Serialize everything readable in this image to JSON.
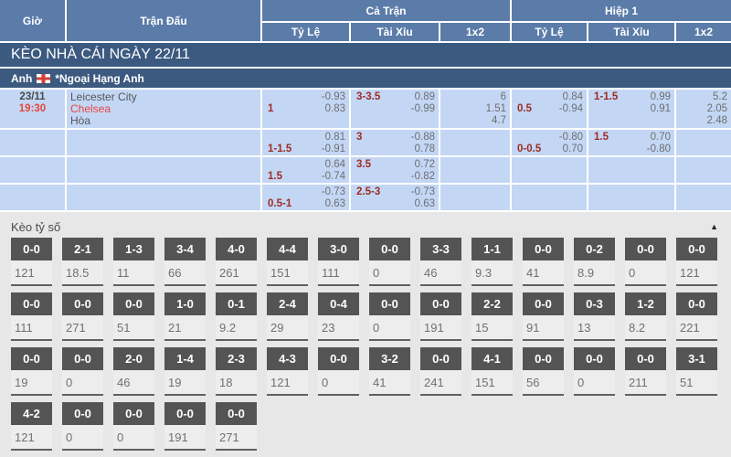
{
  "colors": {
    "header_blue": "#5b7ca9",
    "title_bar_blue": "#3c5a80",
    "row_blue": "#c3d7f5",
    "accent_red": "#e8463c",
    "handicap_red": "#9e2b22",
    "odds_gray": "#6e6e6e",
    "score_box_header_gray": "#545454",
    "section_bg": "#e7e7e7"
  },
  "odds_table": {
    "headers": {
      "time": "Giờ",
      "match": "Trận Đấu",
      "full_match": "Cả Trận",
      "first_half": "Hiệp 1",
      "odds": "Tỷ Lệ",
      "over_under": "Tài Xỉu",
      "one_x_two": "1x2"
    },
    "section_title": "KÈO NHÀ CÁI NGÀY 22/11",
    "league": {
      "country": "Anh",
      "flag_icon": "england-flag",
      "name": "*Ngoại Hạng Anh"
    },
    "rows": [
      {
        "date": "23/11",
        "time": "19:30",
        "teams": [
          "Leicester City",
          "Chelsea",
          "Hòa"
        ],
        "cells": [
          {
            "type": "hdp",
            "lines": [
              [
                "",
                "-0.93"
              ],
              [
                "1",
                "0.83"
              ]
            ]
          },
          {
            "type": "hdp",
            "lines": [
              [
                "3-3.5",
                "0.89"
              ],
              [
                "",
                "-0.99"
              ]
            ]
          },
          {
            "type": "1x2",
            "values": [
              "6",
              "1.51",
              "4.7"
            ]
          },
          {
            "type": "hdp",
            "lines": [
              [
                "",
                "0.84"
              ],
              [
                "0.5",
                "-0.94"
              ]
            ]
          },
          {
            "type": "hdp",
            "lines": [
              [
                "1-1.5",
                "0.99"
              ],
              [
                "",
                "0.91"
              ]
            ]
          },
          {
            "type": "1x2",
            "values": [
              "5.2",
              "2.05",
              "2.48"
            ]
          }
        ]
      },
      {
        "date": "",
        "time": "",
        "teams": [],
        "cells": [
          {
            "type": "hdp",
            "lines": [
              [
                "",
                "0.81"
              ],
              [
                "1-1.5",
                "-0.91"
              ]
            ]
          },
          {
            "type": "hdp",
            "lines": [
              [
                "3",
                "-0.88"
              ],
              [
                "",
                "0.78"
              ]
            ]
          },
          {
            "type": "1x2",
            "values": []
          },
          {
            "type": "hdp",
            "lines": [
              [
                "",
                "-0.80"
              ],
              [
                "0-0.5",
                "0.70"
              ]
            ]
          },
          {
            "type": "hdp",
            "lines": [
              [
                "1.5",
                "0.70"
              ],
              [
                "",
                "-0.80"
              ]
            ]
          },
          {
            "type": "1x2",
            "values": []
          }
        ]
      },
      {
        "date": "",
        "time": "",
        "teams": [],
        "cells": [
          {
            "type": "hdp",
            "lines": [
              [
                "",
                "0.64"
              ],
              [
                "1.5",
                "-0.74"
              ]
            ]
          },
          {
            "type": "hdp",
            "lines": [
              [
                "3.5",
                "0.72"
              ],
              [
                "",
                "-0.82"
              ]
            ]
          },
          {
            "type": "1x2",
            "values": []
          },
          {
            "type": "hdp",
            "lines": [
              [
                "",
                ""
              ],
              [
                "",
                ""
              ]
            ]
          },
          {
            "type": "hdp",
            "lines": [
              [
                "",
                ""
              ],
              [
                "",
                ""
              ]
            ]
          },
          {
            "type": "1x2",
            "values": []
          }
        ]
      },
      {
        "date": "",
        "time": "",
        "teams": [],
        "cells": [
          {
            "type": "hdp",
            "lines": [
              [
                "",
                "-0.73"
              ],
              [
                "0.5-1",
                "0.63"
              ]
            ]
          },
          {
            "type": "hdp",
            "lines": [
              [
                "2.5-3",
                "-0.73"
              ],
              [
                "",
                "0.63"
              ]
            ]
          },
          {
            "type": "1x2",
            "values": []
          },
          {
            "type": "hdp",
            "lines": [
              [
                "",
                ""
              ],
              [
                "",
                ""
              ]
            ]
          },
          {
            "type": "hdp",
            "lines": [
              [
                "",
                ""
              ],
              [
                "",
                ""
              ]
            ]
          },
          {
            "type": "1x2",
            "values": []
          }
        ]
      }
    ]
  },
  "score_odds": {
    "title": "Kèo tỷ số",
    "collapse_icon": "▲",
    "rows": [
      [
        {
          "score": "0-0",
          "odds": "121"
        },
        {
          "score": "2-1",
          "odds": "18.5"
        },
        {
          "score": "1-3",
          "odds": "11"
        },
        {
          "score": "3-4",
          "odds": "66"
        },
        {
          "score": "4-0",
          "odds": "261"
        },
        {
          "score": "4-4",
          "odds": "151"
        },
        {
          "score": "3-0",
          "odds": "111"
        },
        {
          "score": "0-0",
          "odds": "0"
        },
        {
          "score": "3-3",
          "odds": "46"
        },
        {
          "score": "1-1",
          "odds": "9.3"
        },
        {
          "score": "0-0",
          "odds": "41"
        },
        {
          "score": "0-2",
          "odds": "8.9"
        },
        {
          "score": "0-0",
          "odds": "0"
        },
        {
          "score": "0-0",
          "odds": "121"
        }
      ],
      [
        {
          "score": "0-0",
          "odds": "111"
        },
        {
          "score": "0-0",
          "odds": "271"
        },
        {
          "score": "0-0",
          "odds": "51"
        },
        {
          "score": "1-0",
          "odds": "21"
        },
        {
          "score": "0-1",
          "odds": "9.2"
        },
        {
          "score": "2-4",
          "odds": "29"
        },
        {
          "score": "0-4",
          "odds": "23"
        },
        {
          "score": "0-0",
          "odds": "0"
        },
        {
          "score": "0-0",
          "odds": "191"
        },
        {
          "score": "2-2",
          "odds": "15"
        },
        {
          "score": "0-0",
          "odds": "91"
        },
        {
          "score": "0-3",
          "odds": "13"
        },
        {
          "score": "1-2",
          "odds": "8.2"
        },
        {
          "score": "0-0",
          "odds": "221"
        }
      ],
      [
        {
          "score": "0-0",
          "odds": "19"
        },
        {
          "score": "0-0",
          "odds": "0"
        },
        {
          "score": "2-0",
          "odds": "46"
        },
        {
          "score": "1-4",
          "odds": "19"
        },
        {
          "score": "2-3",
          "odds": "18"
        },
        {
          "score": "4-3",
          "odds": "121"
        },
        {
          "score": "0-0",
          "odds": "0"
        },
        {
          "score": "3-2",
          "odds": "41"
        },
        {
          "score": "0-0",
          "odds": "241"
        },
        {
          "score": "4-1",
          "odds": "151"
        },
        {
          "score": "0-0",
          "odds": "56"
        },
        {
          "score": "0-0",
          "odds": "0"
        },
        {
          "score": "0-0",
          "odds": "211"
        },
        {
          "score": "3-1",
          "odds": "51"
        }
      ],
      [
        {
          "score": "4-2",
          "odds": "121"
        },
        {
          "score": "0-0",
          "odds": "0"
        },
        {
          "score": "0-0",
          "odds": "0"
        },
        {
          "score": "0-0",
          "odds": "191"
        },
        {
          "score": "0-0",
          "odds": "271"
        }
      ]
    ]
  }
}
